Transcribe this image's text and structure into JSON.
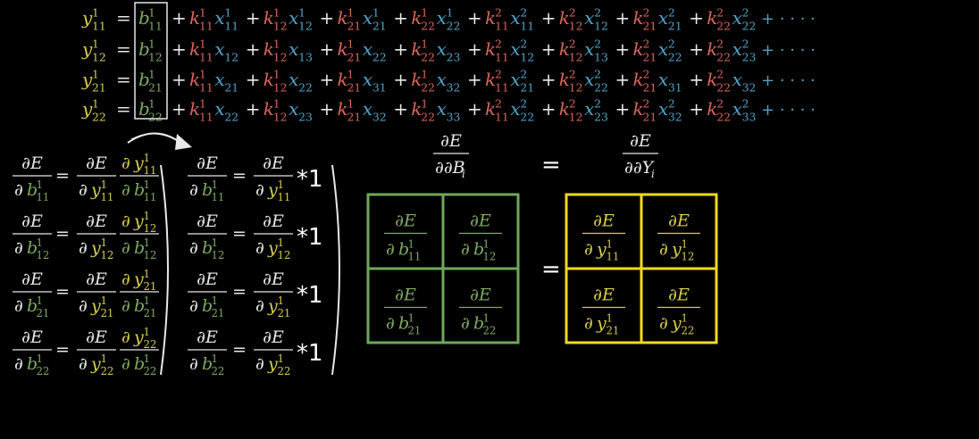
{
  "colors": {
    "background": "#000000",
    "y_yellow": "#d8cc4a",
    "b_green": "#7eaa62",
    "k_red": "#d9665b",
    "x_blue": "#4fa4c9",
    "white": "#e8e8e8",
    "grid_green": "#6fa85a",
    "grid_yellow": "#f2da1f"
  },
  "expansion": {
    "rows": [
      {
        "y": "y",
        "ysub": "11",
        "ysup": "1",
        "b": "b",
        "bsub": "11",
        "bsup": "1",
        "terms": [
          [
            "1",
            "11",
            "x",
            "11",
            "1"
          ],
          [
            "1",
            "12",
            "x",
            "12",
            "1"
          ],
          [
            "1",
            "21",
            "x",
            "21",
            "1"
          ],
          [
            "1",
            "22",
            "x",
            "22",
            "1"
          ],
          [
            "2",
            "11",
            "x",
            "11",
            "2"
          ],
          [
            "2",
            "12",
            "x",
            "12",
            "2"
          ],
          [
            "2",
            "21",
            "x",
            "21",
            "2"
          ],
          [
            "2",
            "22",
            "x",
            "22",
            "2"
          ]
        ]
      },
      {
        "y": "y",
        "ysub": "12",
        "ysup": "1",
        "b": "b",
        "bsub": "12",
        "bsup": "1",
        "terms": [
          [
            "1",
            "11",
            "x",
            "12",
            ""
          ],
          [
            "1",
            "12",
            "x",
            "13",
            ""
          ],
          [
            "1",
            "21",
            "x",
            "22",
            ""
          ],
          [
            "1",
            "22",
            "x",
            "23",
            ""
          ],
          [
            "2",
            "11",
            "x",
            "12",
            "2"
          ],
          [
            "2",
            "12",
            "x",
            "13",
            "2"
          ],
          [
            "2",
            "21",
            "x",
            "22",
            "2"
          ],
          [
            "2",
            "22",
            "x",
            "23",
            "2"
          ]
        ]
      },
      {
        "y": "y",
        "ysub": "21",
        "ysup": "1",
        "b": "b",
        "bsub": "21",
        "bsup": "1",
        "terms": [
          [
            "1",
            "11",
            "x",
            "21",
            ""
          ],
          [
            "1",
            "12",
            "x",
            "22",
            ""
          ],
          [
            "1",
            "21",
            "x",
            "31",
            ""
          ],
          [
            "1",
            "22",
            "x",
            "32",
            ""
          ],
          [
            "2",
            "11",
            "x",
            "21",
            "2"
          ],
          [
            "2",
            "12",
            "x",
            "22",
            "2"
          ],
          [
            "2",
            "21",
            "x",
            "31",
            ""
          ],
          [
            "2",
            "22",
            "x",
            "32",
            ""
          ]
        ]
      },
      {
        "y": "y",
        "ysub": "22",
        "ysup": "1",
        "b": "b",
        "bsub": "22",
        "bsup": "1",
        "terms": [
          [
            "1",
            "11",
            "x",
            "22",
            ""
          ],
          [
            "1",
            "12",
            "x",
            "23",
            ""
          ],
          [
            "1",
            "21",
            "x",
            "32",
            ""
          ],
          [
            "1",
            "22",
            "x",
            "33",
            ""
          ],
          [
            "2",
            "11",
            "x",
            "22",
            "2"
          ],
          [
            "2",
            "12",
            "x",
            "23",
            "2"
          ],
          [
            "2",
            "21",
            "x",
            "32",
            "2"
          ],
          [
            "2",
            "22",
            "x",
            "33",
            "2"
          ]
        ]
      }
    ],
    "ellipsis": "+ · · · ·"
  },
  "chain_rule": {
    "indices": [
      "11",
      "12",
      "21",
      "22"
    ],
    "numerator": "∂E",
    "sup": "1",
    "times_one": "*1"
  },
  "matrix_eq": {
    "lhs_num": "∂E",
    "lhs_den": "∂B",
    "lhs_den_sub": "i",
    "equals": "=",
    "rhs_num": "∂E",
    "rhs_den": "∂Y",
    "rhs_den_sub": "i",
    "cells": [
      "11",
      "12",
      "21",
      "22"
    ],
    "sup": "1"
  }
}
